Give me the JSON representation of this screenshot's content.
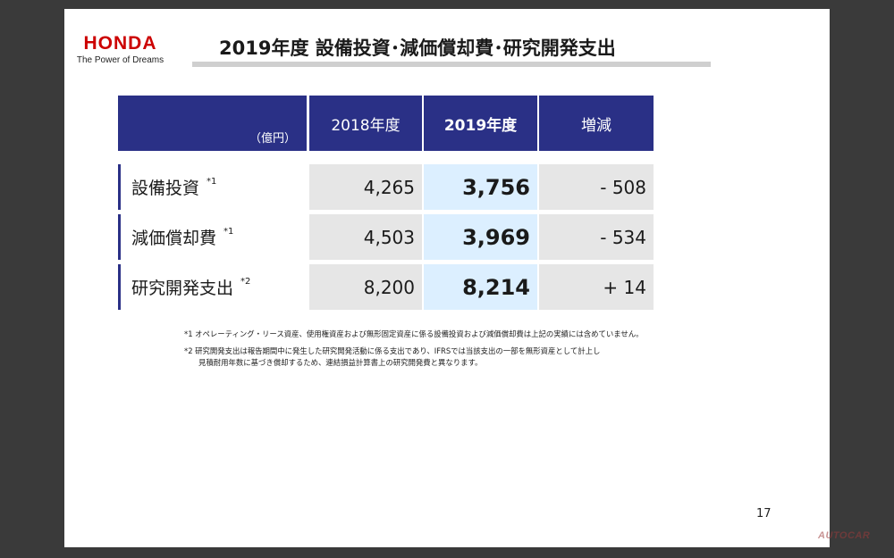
{
  "brand": {
    "name": "HONDA",
    "tagline": "The Power of Dreams"
  },
  "title": "2019年度 設備投資･減価償却費･研究開発支出",
  "table": {
    "unit": "（億円）",
    "col_2018": "2018年度",
    "col_2019": "2019年度",
    "col_change": "増減",
    "rows": [
      {
        "label": "設備投資",
        "note": "*1",
        "v2018": "4,265",
        "v2019": "3,756",
        "change": "- 508"
      },
      {
        "label": "減価償却費",
        "note": "*1",
        "v2018": "4,503",
        "v2019": "3,969",
        "change": "- 534"
      },
      {
        "label": "研究開発支出",
        "note": "*2",
        "v2018": "8,200",
        "v2019": "8,214",
        "change": "+ 14"
      }
    ]
  },
  "notes": {
    "n1": "*1 オペレーティング・リース資産、使用権資産および無形固定資産に係る設備投資および減価償却費は上記の実績には含めていません。",
    "n2_l1": "*2 研究開発支出は報告期間中に発生した研究開発活動に係る支出であり、IFRSでは当該支出の一部を無形資産として計上し",
    "n2_l2": "見積耐用年数に基づき償却するため、連結損益計算書上の研究開発費と異なります。"
  },
  "page_number": "17",
  "watermark": "AUTOCAR",
  "colors": {
    "header_navy": "#2a3086",
    "highlight_blue": "#dcefff",
    "brand_red": "#cc0000"
  }
}
